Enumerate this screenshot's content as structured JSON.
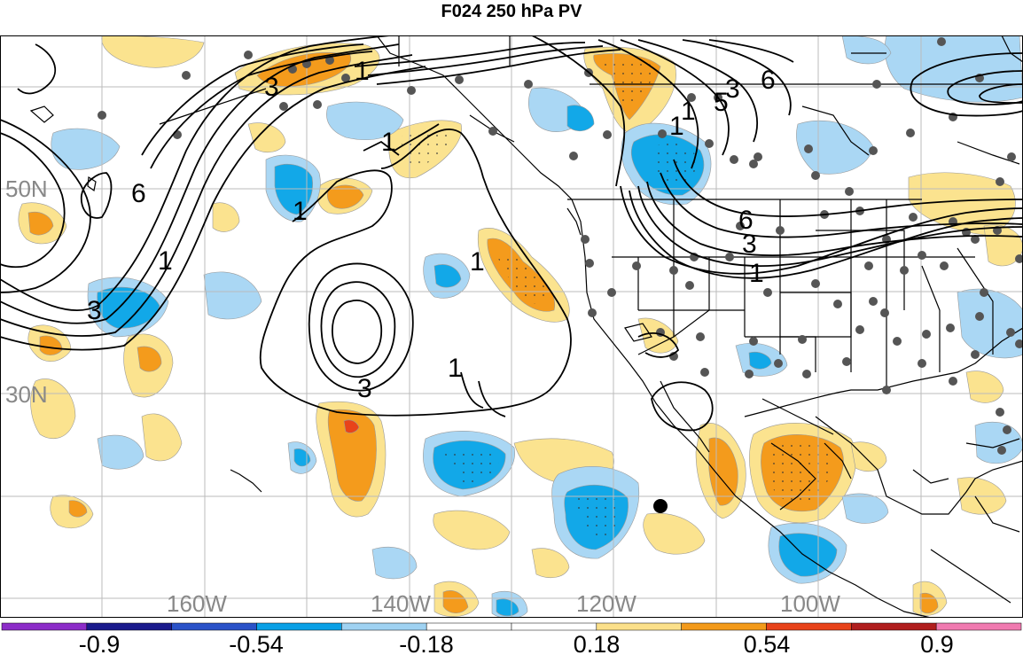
{
  "title": "F024 250 hPa PV",
  "lat_labels": [
    {
      "text": "50N"
    },
    {
      "text": "30N"
    }
  ],
  "lon_labels": [
    {
      "text": "160W"
    },
    {
      "text": "140W"
    },
    {
      "text": "120W"
    },
    {
      "text": "100W"
    }
  ],
  "contour_labels": [
    "3",
    "1",
    "6",
    "1",
    "3",
    "1",
    "1",
    "1",
    "1",
    "3",
    "1",
    "1",
    "6",
    "3",
    "5",
    "6",
    "3",
    "1"
  ],
  "colorbar": {
    "ticks": [
      "-0.9",
      "-0.54",
      "-0.18",
      "0.18",
      "0.54",
      "0.9"
    ],
    "colors": [
      "#8c2cc8",
      "#1a1a8c",
      "#2a52c8",
      "#0aa0e6",
      "#9fd2f2",
      "#ffffff",
      "#ffffff",
      "#fbe08a",
      "#f39a1a",
      "#e8431a",
      "#b01e1e",
      "#f07ab0"
    ]
  },
  "colors": {
    "pos_light": "#fbe38f",
    "pos_mid": "#f49b1c",
    "pos_strong": "#e8431a",
    "neg_light": "#aad7f4",
    "neg_mid": "#12a8e8",
    "station": "#555555",
    "grid": "#bbbbbb"
  }
}
